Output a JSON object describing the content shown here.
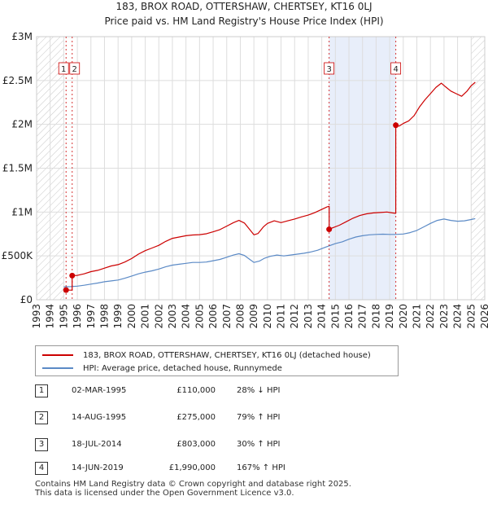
{
  "chart_data": {
    "type": "line",
    "title": "183, BROX ROAD, OTTERSHAW, CHERTSEY, KT16 0LJ",
    "subtitle": "Price paid vs. HM Land Registry's House Price Index (HPI)",
    "xlim": [
      1993,
      2026
    ],
    "ylim": [
      0,
      3000000
    ],
    "x_ticks": [
      1993,
      1994,
      1995,
      1996,
      1997,
      1998,
      1999,
      2000,
      2001,
      2002,
      2003,
      2004,
      2005,
      2006,
      2007,
      2008,
      2009,
      2010,
      2011,
      2012,
      2013,
      2014,
      2015,
      2016,
      2017,
      2018,
      2019,
      2020,
      2021,
      2022,
      2023,
      2024,
      2025,
      2026
    ],
    "y_ticks": [
      {
        "value": 0,
        "label": "£0"
      },
      {
        "value": 500000,
        "label": "£500K"
      },
      {
        "value": 1000000,
        "label": "£1M"
      },
      {
        "value": 1500000,
        "label": "£1.5M"
      },
      {
        "value": 2000000,
        "label": "£2M"
      },
      {
        "value": 2500000,
        "label": "£2.5M"
      },
      {
        "value": 3000000,
        "label": "£3M"
      }
    ],
    "hatched_before": 1995.0,
    "hatched_after": 2025.0,
    "shaded_periods": [
      {
        "from": 2014.54,
        "to": 2019.45
      }
    ],
    "series": [
      {
        "name": "183, BROX ROAD, OTTERSHAW, CHERTSEY, KT16 0LJ (detached house)",
        "color": "#cc0000",
        "points": [
          [
            1995.17,
            110000
          ],
          [
            1995.62,
            110000
          ],
          [
            1995.62,
            275000
          ],
          [
            1996.0,
            278000
          ],
          [
            1996.5,
            295000
          ],
          [
            1997.0,
            320000
          ],
          [
            1997.5,
            335000
          ],
          [
            1998.0,
            360000
          ],
          [
            1998.5,
            385000
          ],
          [
            1999.0,
            400000
          ],
          [
            1999.5,
            430000
          ],
          [
            2000.0,
            470000
          ],
          [
            2000.5,
            520000
          ],
          [
            2001.0,
            560000
          ],
          [
            2001.5,
            590000
          ],
          [
            2002.0,
            620000
          ],
          [
            2002.5,
            665000
          ],
          [
            2003.0,
            700000
          ],
          [
            2003.5,
            715000
          ],
          [
            2004.0,
            730000
          ],
          [
            2004.5,
            738000
          ],
          [
            2005.0,
            742000
          ],
          [
            2005.5,
            752000
          ],
          [
            2006.0,
            775000
          ],
          [
            2006.5,
            800000
          ],
          [
            2007.0,
            840000
          ],
          [
            2007.5,
            880000
          ],
          [
            2007.9,
            905000
          ],
          [
            2008.3,
            875000
          ],
          [
            2008.7,
            800000
          ],
          [
            2009.0,
            740000
          ],
          [
            2009.3,
            755000
          ],
          [
            2009.7,
            830000
          ],
          [
            2010.0,
            870000
          ],
          [
            2010.5,
            900000
          ],
          [
            2011.0,
            880000
          ],
          [
            2011.5,
            900000
          ],
          [
            2012.0,
            920000
          ],
          [
            2012.5,
            945000
          ],
          [
            2013.0,
            965000
          ],
          [
            2013.5,
            995000
          ],
          [
            2014.0,
            1030000
          ],
          [
            2014.4,
            1060000
          ],
          [
            2014.54,
            1065000
          ],
          [
            2014.54,
            803000
          ],
          [
            2014.8,
            820000
          ],
          [
            2015.3,
            850000
          ],
          [
            2015.8,
            890000
          ],
          [
            2016.3,
            930000
          ],
          [
            2016.8,
            960000
          ],
          [
            2017.3,
            980000
          ],
          [
            2017.8,
            990000
          ],
          [
            2018.3,
            995000
          ],
          [
            2018.8,
            1000000
          ],
          [
            2019.2,
            990000
          ],
          [
            2019.45,
            985000
          ],
          [
            2019.45,
            1990000
          ],
          [
            2019.7,
            1980000
          ],
          [
            2020.0,
            2010000
          ],
          [
            2020.4,
            2040000
          ],
          [
            2020.8,
            2100000
          ],
          [
            2021.2,
            2200000
          ],
          [
            2021.6,
            2280000
          ],
          [
            2022.0,
            2350000
          ],
          [
            2022.4,
            2420000
          ],
          [
            2022.8,
            2470000
          ],
          [
            2023.1,
            2430000
          ],
          [
            2023.5,
            2380000
          ],
          [
            2023.9,
            2350000
          ],
          [
            2024.3,
            2320000
          ],
          [
            2024.7,
            2380000
          ],
          [
            2025.0,
            2440000
          ],
          [
            2025.3,
            2480000
          ]
        ]
      },
      {
        "name": "HPI: Average price, detached house, Runnymede",
        "color": "#5b8ac6",
        "points": [
          [
            1995.0,
            148000
          ],
          [
            1995.5,
            150000
          ],
          [
            1996.0,
            155000
          ],
          [
            1996.5,
            165000
          ],
          [
            1997.0,
            178000
          ],
          [
            1997.5,
            190000
          ],
          [
            1998.0,
            205000
          ],
          [
            1998.5,
            215000
          ],
          [
            1999.0,
            225000
          ],
          [
            1999.5,
            245000
          ],
          [
            2000.0,
            270000
          ],
          [
            2000.5,
            295000
          ],
          [
            2001.0,
            315000
          ],
          [
            2001.5,
            330000
          ],
          [
            2002.0,
            350000
          ],
          [
            2002.5,
            375000
          ],
          [
            2003.0,
            395000
          ],
          [
            2003.5,
            405000
          ],
          [
            2004.0,
            415000
          ],
          [
            2004.5,
            425000
          ],
          [
            2005.0,
            425000
          ],
          [
            2005.5,
            430000
          ],
          [
            2006.0,
            445000
          ],
          [
            2006.5,
            460000
          ],
          [
            2007.0,
            485000
          ],
          [
            2007.5,
            510000
          ],
          [
            2007.9,
            525000
          ],
          [
            2008.3,
            505000
          ],
          [
            2008.7,
            460000
          ],
          [
            2009.0,
            425000
          ],
          [
            2009.4,
            440000
          ],
          [
            2009.8,
            475000
          ],
          [
            2010.2,
            495000
          ],
          [
            2010.7,
            510000
          ],
          [
            2011.2,
            500000
          ],
          [
            2011.7,
            510000
          ],
          [
            2012.2,
            520000
          ],
          [
            2012.7,
            530000
          ],
          [
            2013.2,
            545000
          ],
          [
            2013.7,
            565000
          ],
          [
            2014.2,
            595000
          ],
          [
            2014.54,
            615000
          ],
          [
            2015.0,
            640000
          ],
          [
            2015.5,
            660000
          ],
          [
            2016.0,
            690000
          ],
          [
            2016.5,
            715000
          ],
          [
            2017.0,
            730000
          ],
          [
            2017.5,
            740000
          ],
          [
            2018.0,
            745000
          ],
          [
            2018.5,
            748000
          ],
          [
            2019.0,
            745000
          ],
          [
            2019.45,
            745000
          ],
          [
            2020.0,
            750000
          ],
          [
            2020.5,
            765000
          ],
          [
            2021.0,
            790000
          ],
          [
            2021.5,
            830000
          ],
          [
            2022.0,
            870000
          ],
          [
            2022.5,
            905000
          ],
          [
            2023.0,
            920000
          ],
          [
            2023.5,
            905000
          ],
          [
            2024.0,
            895000
          ],
          [
            2024.5,
            900000
          ],
          [
            2025.0,
            915000
          ],
          [
            2025.3,
            925000
          ]
        ]
      }
    ],
    "sale_markers": [
      {
        "id": "1",
        "x": 1995.17,
        "y": 110000
      },
      {
        "id": "2",
        "x": 1995.62,
        "y": 275000
      },
      {
        "id": "3",
        "x": 2014.54,
        "y": 803000
      },
      {
        "id": "4",
        "x": 2019.45,
        "y": 1990000
      }
    ]
  },
  "legend": {
    "property_label": "183, BROX ROAD, OTTERSHAW, CHERTSEY, KT16 0LJ (detached house)",
    "hpi_label": "HPI: Average price, detached house, Runnymede"
  },
  "sales": [
    {
      "num": "1",
      "date": "02-MAR-1995",
      "price": "£110,000",
      "hpi": "28% ↓ HPI"
    },
    {
      "num": "2",
      "date": "14-AUG-1995",
      "price": "£275,000",
      "hpi": "79% ↑ HPI"
    },
    {
      "num": "3",
      "date": "18-JUL-2014",
      "price": "£803,000",
      "hpi": "30% ↑ HPI"
    },
    {
      "num": "4",
      "date": "14-JUN-2019",
      "price": "£1,990,000",
      "hpi": "167% ↑ HPI"
    }
  ],
  "footer": {
    "line1": "Contains HM Land Registry data © Crown copyright and database right 2025.",
    "line2": "This data is licensed under the Open Government Licence v3.0."
  },
  "colors": {
    "property": "#cc0000",
    "hpi": "#5b8ac6",
    "grid": "#dddddd",
    "shade": "#e8eefa"
  }
}
